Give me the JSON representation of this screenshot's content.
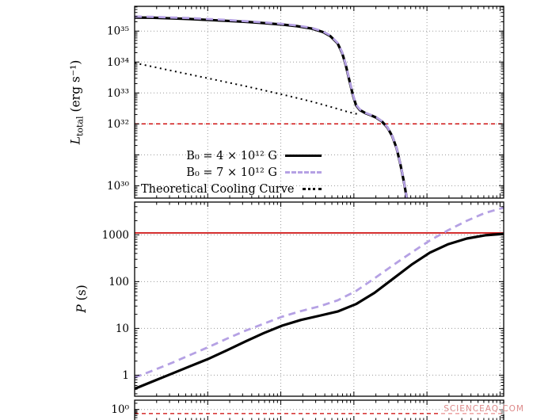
{
  "watermark": {
    "text": "SCIENCEAQ.COM",
    "color": "#dd8a8a"
  },
  "chart_data": [
    {
      "id": "luminosity",
      "type": "line",
      "title": "",
      "ylabel": {
        "symbol": "L",
        "subscript": "total",
        "units": "(erg s⁻¹)"
      },
      "y_scale": "log",
      "ylim_log": [
        29.6,
        35.8
      ],
      "y_ticks": [
        {
          "label": "10³⁵",
          "value": 35
        },
        {
          "label": "10³⁴",
          "value": 34
        },
        {
          "label": "10³³",
          "value": 33
        },
        {
          "label": "10³²",
          "value": 32
        },
        {
          "label": "10³⁰",
          "value": 30
        }
      ],
      "x_axis": {
        "scale": "log",
        "decades": 5.05,
        "tick_labels_visible": false
      },
      "grid": true,
      "gridline_color": "#9a9a9a",
      "hlines": [
        {
          "value_log": 32.0,
          "color": "#cc0000",
          "style": "dashed"
        }
      ],
      "legend": {
        "position": "inside-bottom-left"
      },
      "series": [
        {
          "name": "B₀ = 4 × 10¹² G",
          "color": "#000000",
          "style": "solid",
          "width": 3.2,
          "points": [
            [
              0.0,
              35.44
            ],
            [
              0.05,
              35.43
            ],
            [
              0.1,
              35.41
            ],
            [
              0.15,
              35.39
            ],
            [
              0.2,
              35.36
            ],
            [
              0.25,
              35.33
            ],
            [
              0.3,
              35.3
            ],
            [
              0.35,
              35.26
            ],
            [
              0.4,
              35.21
            ],
            [
              0.44,
              35.16
            ],
            [
              0.48,
              35.08
            ],
            [
              0.51,
              34.97
            ],
            [
              0.53,
              34.84
            ],
            [
              0.55,
              34.6
            ],
            [
              0.562,
              34.3
            ],
            [
              0.572,
              33.9
            ],
            [
              0.582,
              33.4
            ],
            [
              0.592,
              32.9
            ],
            [
              0.6,
              32.6
            ],
            [
              0.61,
              32.45
            ],
            [
              0.625,
              32.35
            ],
            [
              0.64,
              32.28
            ],
            [
              0.655,
              32.2
            ],
            [
              0.67,
              32.08
            ],
            [
              0.685,
              31.88
            ],
            [
              0.698,
              31.6
            ],
            [
              0.71,
              31.2
            ],
            [
              0.72,
              30.7
            ],
            [
              0.73,
              30.1
            ],
            [
              0.738,
              29.55
            ]
          ]
        },
        {
          "name": "B₀ = 7 × 10¹² G",
          "color": "#b5a1e4",
          "style": "dashed",
          "width": 2.8,
          "points": [
            [
              0.0,
              35.47
            ],
            [
              0.05,
              35.46
            ],
            [
              0.1,
              35.44
            ],
            [
              0.15,
              35.42
            ],
            [
              0.2,
              35.39
            ],
            [
              0.25,
              35.36
            ],
            [
              0.3,
              35.32
            ],
            [
              0.35,
              35.28
            ],
            [
              0.4,
              35.23
            ],
            [
              0.44,
              35.18
            ],
            [
              0.48,
              35.1
            ],
            [
              0.51,
              34.99
            ],
            [
              0.53,
              34.86
            ],
            [
              0.55,
              34.62
            ],
            [
              0.562,
              34.32
            ],
            [
              0.572,
              33.92
            ],
            [
              0.582,
              33.42
            ],
            [
              0.592,
              32.92
            ],
            [
              0.6,
              32.62
            ],
            [
              0.61,
              32.47
            ],
            [
              0.625,
              32.36
            ],
            [
              0.64,
              32.29
            ],
            [
              0.655,
              32.21
            ],
            [
              0.67,
              32.09
            ],
            [
              0.685,
              31.89
            ],
            [
              0.698,
              31.61
            ],
            [
              0.71,
              31.21
            ],
            [
              0.72,
              30.71
            ],
            [
              0.73,
              30.11
            ],
            [
              0.738,
              29.55
            ]
          ]
        },
        {
          "name": "Theoretical Cooling Curve",
          "color": "#000000",
          "style": "dotted",
          "width": 2,
          "points": [
            [
              0.0,
              33.97
            ],
            [
              0.1,
              33.72
            ],
            [
              0.2,
              33.47
            ],
            [
              0.3,
              33.22
            ],
            [
              0.4,
              32.95
            ],
            [
              0.48,
              32.72
            ],
            [
              0.54,
              32.52
            ],
            [
              0.58,
              32.38
            ],
            [
              0.61,
              32.3
            ]
          ]
        }
      ]
    },
    {
      "id": "period",
      "type": "line",
      "title": "",
      "ylabel": {
        "symbol": "P",
        "subscript": "",
        "units": "(s)"
      },
      "y_scale": "log",
      "ylim_log": [
        -0.45,
        3.7
      ],
      "y_ticks": [
        {
          "label": "1000",
          "value": 3
        },
        {
          "label": "100",
          "value": 2
        },
        {
          "label": "10",
          "value": 1
        },
        {
          "label": "1",
          "value": 0
        }
      ],
      "x_axis": {
        "scale": "log",
        "decades": 5.05,
        "tick_labels_visible": false
      },
      "grid": true,
      "gridline_color": "#9a9a9a",
      "hlines": [
        {
          "value_log": 3.04,
          "color": "#cc0000",
          "style": "solid"
        }
      ],
      "series": [
        {
          "name": "B₀ = 4 × 10¹² G",
          "color": "#000000",
          "style": "solid",
          "width": 3.2,
          "points": [
            [
              0.0,
              -0.29
            ],
            [
              0.05,
              -0.13
            ],
            [
              0.1,
              0.03
            ],
            [
              0.15,
              0.19
            ],
            [
              0.2,
              0.35
            ],
            [
              0.25,
              0.53
            ],
            [
              0.3,
              0.72
            ],
            [
              0.35,
              0.9
            ],
            [
              0.4,
              1.06
            ],
            [
              0.45,
              1.18
            ],
            [
              0.5,
              1.27
            ],
            [
              0.55,
              1.36
            ],
            [
              0.6,
              1.52
            ],
            [
              0.65,
              1.76
            ],
            [
              0.7,
              2.06
            ],
            [
              0.75,
              2.36
            ],
            [
              0.8,
              2.62
            ],
            [
              0.85,
              2.8
            ],
            [
              0.9,
              2.92
            ],
            [
              0.95,
              2.99
            ],
            [
              1.0,
              3.02
            ]
          ]
        },
        {
          "name": "B₀ = 7 × 10¹² G",
          "color": "#b5a1e4",
          "style": "dashed",
          "width": 2.8,
          "points": [
            [
              0.0,
              -0.05
            ],
            [
              0.05,
              0.1
            ],
            [
              0.1,
              0.26
            ],
            [
              0.15,
              0.43
            ],
            [
              0.2,
              0.6
            ],
            [
              0.25,
              0.78
            ],
            [
              0.3,
              0.95
            ],
            [
              0.35,
              1.1
            ],
            [
              0.4,
              1.25
            ],
            [
              0.45,
              1.37
            ],
            [
              0.5,
              1.47
            ],
            [
              0.55,
              1.6
            ],
            [
              0.6,
              1.8
            ],
            [
              0.65,
              2.07
            ],
            [
              0.7,
              2.35
            ],
            [
              0.75,
              2.62
            ],
            [
              0.8,
              2.88
            ],
            [
              0.85,
              3.1
            ],
            [
              0.9,
              3.3
            ],
            [
              0.95,
              3.47
            ],
            [
              1.0,
              3.58
            ]
          ]
        }
      ]
    },
    {
      "id": "third-panel-partial",
      "type": "line",
      "title": "",
      "ylabel": {
        "symbol": "",
        "subscript": "",
        "units": ""
      },
      "y_scale": "log",
      "ylim_log": [
        -0.55,
        0.45
      ],
      "y_ticks": [
        {
          "label": "10⁰",
          "value": 0
        }
      ],
      "x_axis": {
        "scale": "log",
        "decades": 5.05,
        "tick_labels_visible": false
      },
      "grid": true,
      "gridline_color": "#9a9a9a",
      "hlines": [
        {
          "value_log": -0.2,
          "color": "#cc0000",
          "style": "dashed"
        }
      ],
      "series": []
    }
  ]
}
